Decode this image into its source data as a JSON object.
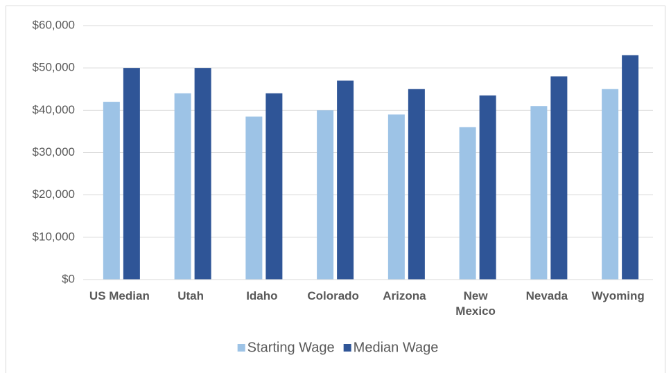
{
  "chart_data": {
    "type": "bar",
    "categories": [
      "US Median",
      "Utah",
      "Idaho",
      "Colorado",
      "Arizona",
      "New Mexico",
      "Nevada",
      "Wyoming"
    ],
    "series": [
      {
        "name": "Starting Wage",
        "color": "#9dc3e6",
        "values": [
          42000,
          44000,
          38500,
          40000,
          39000,
          36000,
          41000,
          45000
        ]
      },
      {
        "name": "Median Wage",
        "color": "#2f5597",
        "values": [
          50000,
          50000,
          44000,
          47000,
          45000,
          43500,
          48000,
          53000
        ]
      }
    ],
    "ylim": [
      0,
      60000
    ],
    "yticks": [
      {
        "value": 0,
        "label": "$0"
      },
      {
        "value": 10000,
        "label": "$10,000"
      },
      {
        "value": 20000,
        "label": "$20,000"
      },
      {
        "value": 30000,
        "label": "$30,000"
      },
      {
        "value": 40000,
        "label": "$40,000"
      },
      {
        "value": 50000,
        "label": "$50,000"
      },
      {
        "value": 60000,
        "label": "$60,000"
      }
    ],
    "grid": true,
    "legend": "bottom"
  }
}
